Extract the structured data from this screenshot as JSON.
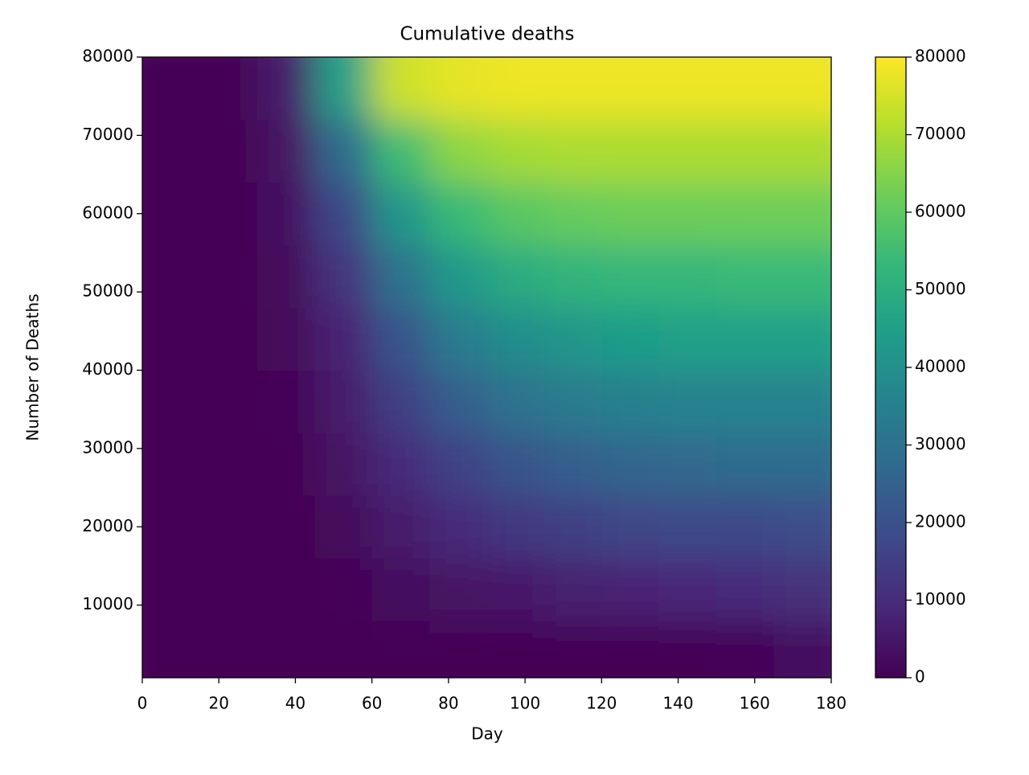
{
  "chart_data": {
    "type": "heatmap",
    "title": "Cumulative deaths",
    "xlabel": "Day",
    "ylabel": "Number of Deaths",
    "colormap": "viridis",
    "x": [
      7.5,
      22.5,
      37.5,
      52.5,
      67.5,
      82.5,
      97.5,
      112.5,
      127.5,
      142.5,
      157.5,
      172.5
    ],
    "y": [
      4000,
      12000,
      20000,
      28000,
      36000,
      44000,
      52000,
      60000,
      68000,
      76000
    ],
    "z": [
      [
        0,
        0,
        0,
        200,
        500,
        700,
        800,
        800,
        700,
        500,
        1000,
        3000
      ],
      [
        0,
        0,
        100,
        1000,
        2500,
        4000,
        5500,
        7000,
        8000,
        9000,
        10000,
        11000
      ],
      [
        0,
        0,
        300,
        2000,
        6000,
        10000,
        13000,
        15000,
        17000,
        18000,
        18000,
        19000
      ],
      [
        0,
        0,
        500,
        4000,
        10000,
        16000,
        21000,
        24000,
        26000,
        27000,
        28000,
        28000
      ],
      [
        0,
        0,
        1000,
        6000,
        15000,
        24000,
        30000,
        33000,
        35000,
        36000,
        36000,
        36000
      ],
      [
        0,
        0,
        1500,
        8000,
        21000,
        33000,
        39000,
        42000,
        44000,
        45000,
        45000,
        45000
      ],
      [
        0,
        0,
        2000,
        12000,
        30000,
        43000,
        49000,
        52000,
        53000,
        53000,
        54000,
        54000
      ],
      [
        0,
        0,
        3000,
        18000,
        42000,
        54000,
        59000,
        61000,
        62000,
        62000,
        62000,
        62000
      ],
      [
        0,
        0,
        4000,
        28000,
        55000,
        66000,
        69000,
        70000,
        70000,
        70000,
        70000,
        70000
      ],
      [
        0,
        0,
        6000,
        45000,
        74000,
        77000,
        78000,
        78000,
        78000,
        78000,
        78000,
        78000
      ]
    ],
    "xlim": [
      0,
      180
    ],
    "xticks": [
      0,
      20,
      40,
      60,
      80,
      100,
      120,
      140,
      160,
      180
    ],
    "ylim": [
      720,
      80000
    ],
    "yticks": [
      10000,
      20000,
      30000,
      40000,
      50000,
      60000,
      70000,
      80000
    ],
    "clim": [
      0,
      80000
    ],
    "cticks": [
      0,
      10000,
      20000,
      30000,
      40000,
      50000,
      60000,
      70000,
      80000
    ]
  }
}
